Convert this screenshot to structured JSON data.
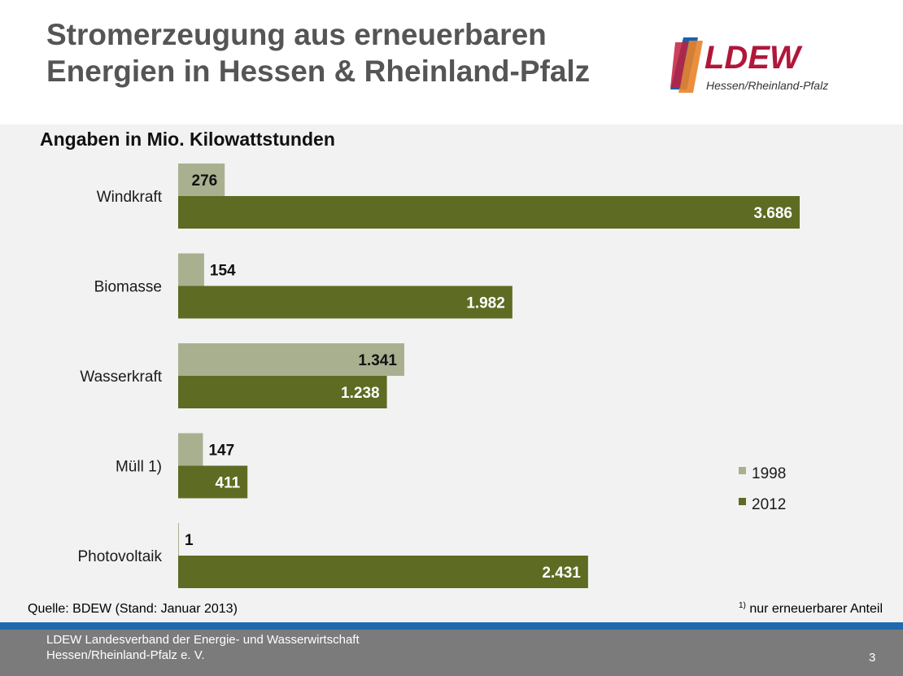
{
  "header": {
    "title_line1": "Stromerzeugung aus erneuerbaren",
    "title_line2": "Energien in Hessen & Rheinland-Pfalz",
    "logo_text": "LDEW",
    "logo_subtext": "Hessen/Rheinland-Pfalz"
  },
  "chart_data": {
    "type": "bar",
    "orientation": "horizontal",
    "title": "Angaben in Mio. Kilowattstunden",
    "categories": [
      "Windkraft",
      "Biomasse",
      "Wasserkraft",
      "Müll 1)",
      "Photovoltaik"
    ],
    "series": [
      {
        "name": "1998",
        "values": [
          276,
          154,
          1341,
          147,
          1
        ],
        "labels": [
          "276",
          "154",
          "1.341",
          "147",
          "1"
        ],
        "color": "#a9b090"
      },
      {
        "name": "2012",
        "values": [
          3686,
          1982,
          1238,
          411,
          2431
        ],
        "labels": [
          "3.686",
          "1.982",
          "1.238",
          "411",
          "2.431"
        ],
        "color": "#5e6b23"
      }
    ],
    "xlim": [
      0,
      3686
    ],
    "grid": false,
    "legend": "right"
  },
  "source": "Quelle: BDEW (Stand: Januar 2013)",
  "footnote": {
    "mark": "1)",
    "text": " nur erneuerbarer Anteil"
  },
  "footer": {
    "line1": "LDEW Landesverband der Energie- und Wasserwirtschaft",
    "line2": "Hessen/Rheinland-Pfalz  e. V.",
    "page_number": "3"
  },
  "colors": {
    "accent_blue": "#1f6bae",
    "logo_red": "#b0173a",
    "footer_gray": "#7b7b7b"
  }
}
